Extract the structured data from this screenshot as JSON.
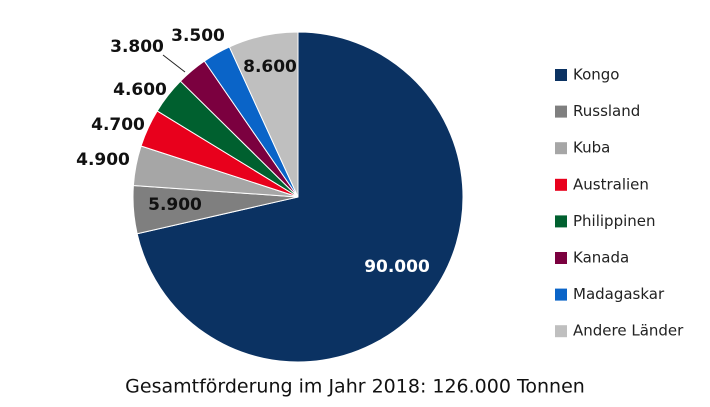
{
  "chart_data": {
    "type": "pie",
    "caption": "Gesamtförderung im Jahr 2018: 126.000 Tonnen",
    "categories": [
      "Kongo",
      "Russland",
      "Kuba",
      "Australien",
      "Philippinen",
      "Kanada",
      "Madagaskar",
      "Andere Länder"
    ],
    "values": [
      90000,
      5900,
      4900,
      4700,
      4600,
      3800,
      3500,
      8600
    ],
    "value_labels": [
      "90.000",
      "5.900",
      "4.900",
      "4.700",
      "4.600",
      "3.800",
      "3.500",
      "8.600"
    ],
    "colors": [
      "#0b3262",
      "#7f7f7f",
      "#a6a6a6",
      "#e8001c",
      "#00602f",
      "#7b003f",
      "#0a64c8",
      "#bfbfbf"
    ],
    "legend": "right"
  }
}
